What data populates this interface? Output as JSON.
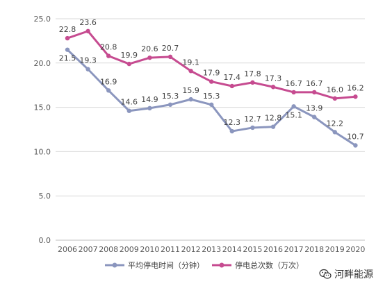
{
  "chart_data": {
    "type": "line",
    "categories": [
      "2006",
      "2007",
      "2008",
      "2009",
      "2010",
      "2011",
      "2012",
      "2013",
      "2014",
      "2015",
      "2016",
      "2017",
      "2018",
      "2019",
      "2020"
    ],
    "series": [
      {
        "name": "平均停电时间（分钟）",
        "values": [
          21.5,
          19.3,
          16.9,
          14.6,
          14.9,
          15.3,
          15.9,
          15.3,
          12.3,
          12.7,
          12.8,
          15.1,
          13.9,
          12.2,
          10.7
        ],
        "labels": [
          "21.5",
          "19.3",
          "16.9",
          "14.6",
          "14.9",
          "15.3",
          "15.9",
          "15.3",
          "12.3",
          "12.7",
          "12.8",
          "15.1",
          "13.9",
          "12.2",
          "10.7"
        ],
        "color": "#8B96BE"
      },
      {
        "name": "停电总次数（万次）",
        "values": [
          22.8,
          23.6,
          20.8,
          19.9,
          20.6,
          20.7,
          19.1,
          17.9,
          17.4,
          17.8,
          17.3,
          16.7,
          16.7,
          16.0,
          16.2
        ],
        "labels": [
          "22.8",
          "23.6",
          "20.8",
          "19.9",
          "20.6",
          "20.7",
          "19.1",
          "17.9",
          "17.4",
          "17.8",
          "17.3",
          "16.7",
          "16.7",
          "16.0",
          "16.2"
        ],
        "color": "#C64B90"
      }
    ],
    "y_ticks": [
      "0.0",
      "5.0",
      "10.0",
      "15.0",
      "20.0",
      "25.0"
    ],
    "ylim": [
      0,
      25
    ],
    "grid": true,
    "legend_position": "bottom"
  },
  "watermark": {
    "text": "河畔能源",
    "icon": "wechat-icon"
  }
}
